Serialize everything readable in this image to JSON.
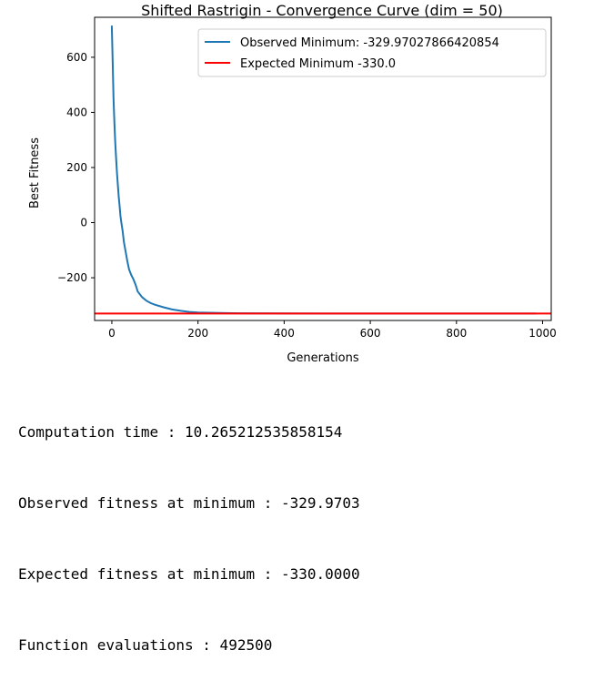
{
  "chart_data": {
    "type": "line",
    "title": "Shifted Rastrigin - Convergence Curve (dim = 50)",
    "xlabel": "Generations",
    "ylabel": "Best Fitness",
    "xlim": [
      -40,
      1020
    ],
    "ylim": [
      -355,
      745
    ],
    "xticks": [
      0,
      200,
      400,
      600,
      800,
      1000
    ],
    "yticks": [
      -200,
      0,
      200,
      400,
      600
    ],
    "xtick_labels": [
      "0",
      "200",
      "400",
      "600",
      "800",
      "1000"
    ],
    "ytick_labels": [
      "−200",
      "0",
      "200",
      "400",
      "600"
    ],
    "legend_position": "upper right",
    "series": [
      {
        "name": "Observed Minimum: -329.97027866420854",
        "color": "#1f77b4",
        "x": [
          0,
          2,
          4,
          6,
          8,
          10,
          12,
          14,
          16,
          18,
          20,
          22,
          25,
          28,
          32,
          36,
          40,
          45,
          50,
          55,
          60,
          70,
          80,
          90,
          100,
          120,
          140,
          160,
          180,
          200,
          250,
          300,
          400,
          500,
          600,
          700,
          800,
          900,
          985
        ],
        "y": [
          715,
          580,
          450,
          360,
          290,
          230,
          180,
          135,
          95,
          60,
          25,
          0,
          -30,
          -70,
          -105,
          -140,
          -170,
          -190,
          -205,
          -225,
          -250,
          -270,
          -283,
          -292,
          -298,
          -307,
          -315,
          -320,
          -324,
          -326,
          -328,
          -329,
          -329.5,
          -329.8,
          -329.9,
          -329.95,
          -329.96,
          -329.97,
          -329.97
        ]
      },
      {
        "name": "Expected Minimum -330.0",
        "color": "#ff0000",
        "y_const": -330.0
      }
    ]
  },
  "output_lines": [
    "Computation time : 10.265212535858154",
    "Observed fitness at minimum : -329.9703",
    "Expected fitness at minimum : -330.0000",
    "Function evaluations : 492500"
  ]
}
